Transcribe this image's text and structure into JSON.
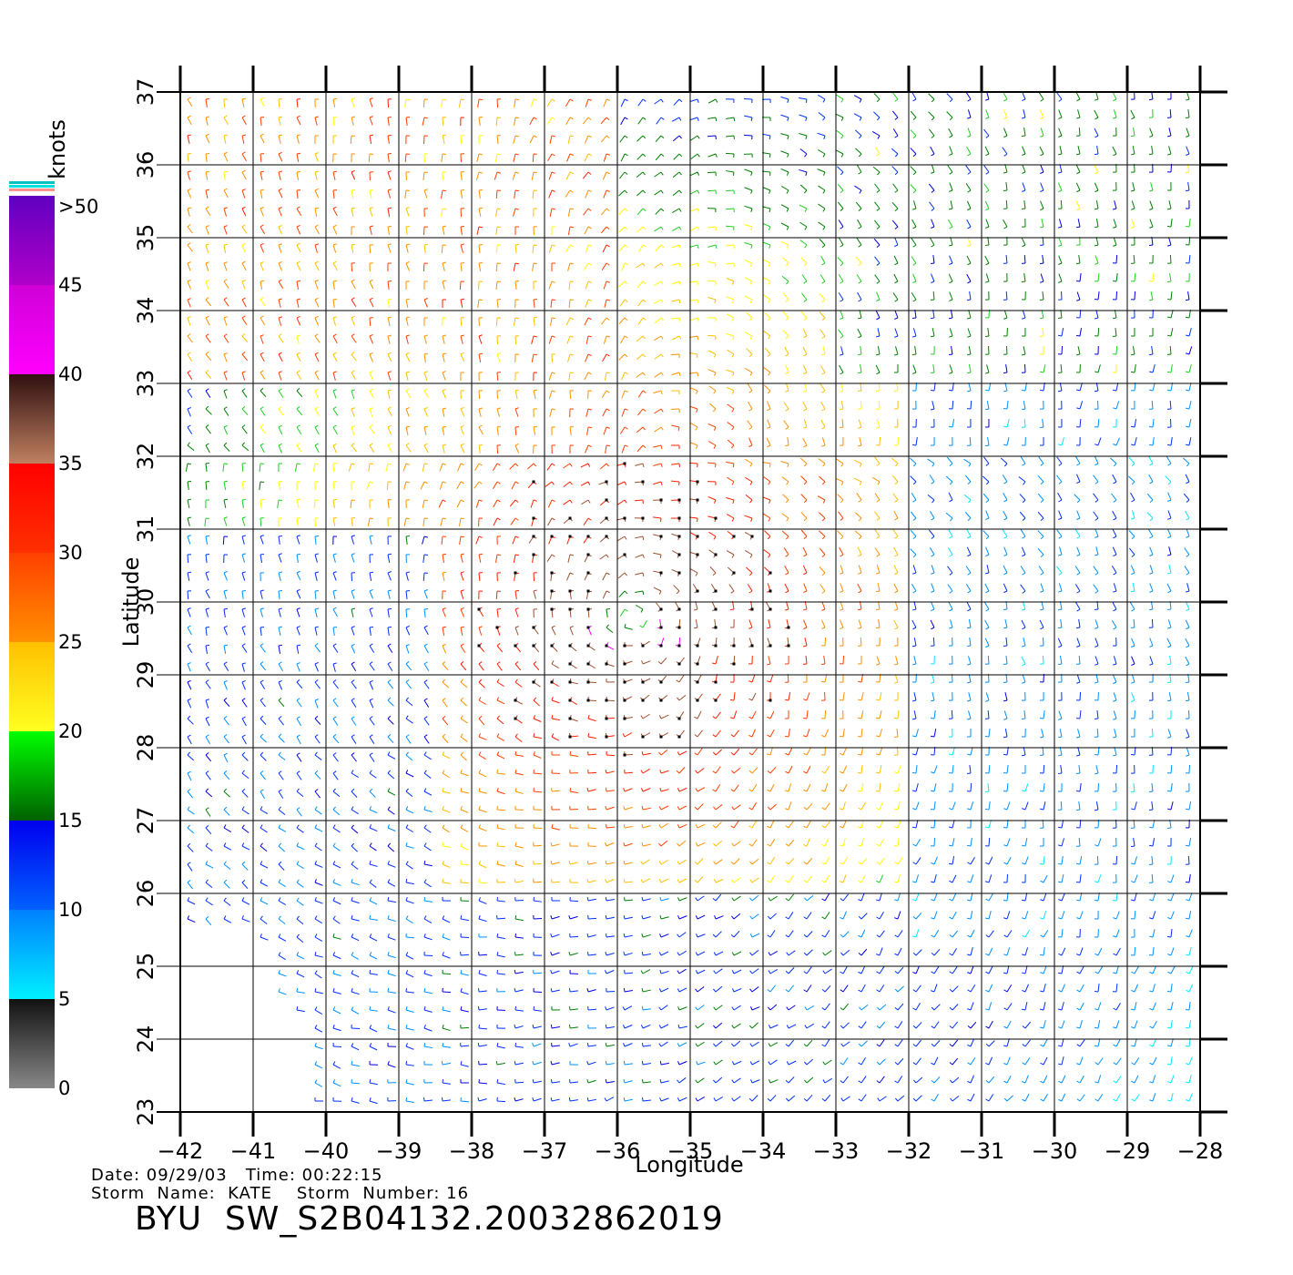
{
  "map": {
    "x_ticks": [
      "−42",
      "−41",
      "−40",
      "−39",
      "−38",
      "−37",
      "−36",
      "−35",
      "−34",
      "−33",
      "−32",
      "−31",
      "−30",
      "−29",
      "−28"
    ],
    "y_ticks": [
      "23",
      "24",
      "25",
      "26",
      "27",
      "28",
      "29",
      "30",
      "31",
      "32",
      "33",
      "34",
      "35",
      "36",
      "37"
    ],
    "x_axis_label": "Longitude",
    "y_axis_label": "Latitude",
    "lon_range": [
      -42,
      -28
    ],
    "lat_range": [
      23,
      37
    ],
    "field": "scatterometer wind vectors (Hurricane Kate region)",
    "storm_center_approx": {
      "lon": -35.8,
      "lat": 29.8
    }
  },
  "legend": {
    "unit": "knots",
    "labels": [
      ">50",
      "45",
      "40",
      "35",
      "30",
      "25",
      "20",
      "15",
      "10",
      "5",
      "0"
    ],
    "bands": [
      {
        "from": 0,
        "to": 5,
        "colors": [
          "#888888",
          "#111111"
        ]
      },
      {
        "from": 5,
        "to": 10,
        "colors": [
          "#00f0ff",
          "#0080ff"
        ]
      },
      {
        "from": 10,
        "to": 15,
        "colors": [
          "#0060ff",
          "#0000ee"
        ]
      },
      {
        "from": 15,
        "to": 20,
        "colors": [
          "#006000",
          "#00ff00"
        ]
      },
      {
        "from": 20,
        "to": 25,
        "colors": [
          "#ffff20",
          "#ffc000"
        ]
      },
      {
        "from": 25,
        "to": 30,
        "colors": [
          "#ff9000",
          "#ff4000"
        ]
      },
      {
        "from": 30,
        "to": 35,
        "colors": [
          "#ff3000",
          "#ff0000"
        ]
      },
      {
        "from": 35,
        "to": 40,
        "colors": [
          "#c08060",
          "#301010"
        ]
      },
      {
        "from": 40,
        "to": 45,
        "colors": [
          "#ff00ff",
          "#d000d8"
        ]
      },
      {
        "from": 45,
        "to": 50,
        "colors": [
          "#b000c8",
          "#6000c0"
        ]
      }
    ],
    "top_stripes": [
      "#00c0c0",
      "#00e0e0",
      "#ff9090"
    ]
  },
  "footer": {
    "date_line": "Date: 09/29/03   Time: 00:22:15",
    "storm_line": "Storm  Name:  KATE    Storm  Number: 16",
    "file_id": "BYU  SW_S2B04132.20032862019"
  }
}
